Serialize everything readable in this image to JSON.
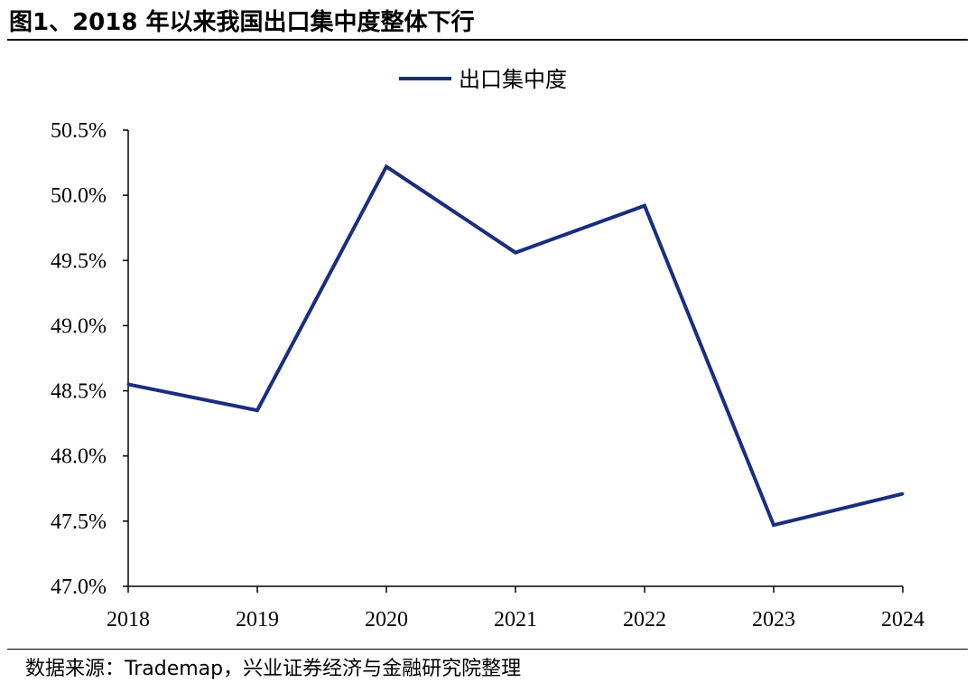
{
  "figure": {
    "title": "图1、2018 年以来我国出口集中度整体下行",
    "source": "数据来源：Trademap，兴业证券经济与金融研究院整理"
  },
  "chart_data": {
    "type": "line",
    "title": "",
    "xlabel": "",
    "ylabel": "",
    "categories": [
      "2018",
      "2019",
      "2020",
      "2021",
      "2022",
      "2023",
      "2024"
    ],
    "series": [
      {
        "name": "出口集中度",
        "values": [
          48.55,
          48.35,
          50.22,
          49.56,
          49.92,
          47.47,
          47.71
        ],
        "color": "#1a2e7e"
      }
    ],
    "ylim": [
      47.0,
      50.5
    ],
    "yticks": [
      47.0,
      47.5,
      48.0,
      48.5,
      49.0,
      49.5,
      50.0,
      50.5
    ],
    "ytick_labels": [
      "47.0%",
      "47.5%",
      "48.0%",
      "48.5%",
      "49.0%",
      "49.5%",
      "50.0%",
      "50.5%"
    ],
    "grid": false,
    "legend_position": "top-center"
  }
}
